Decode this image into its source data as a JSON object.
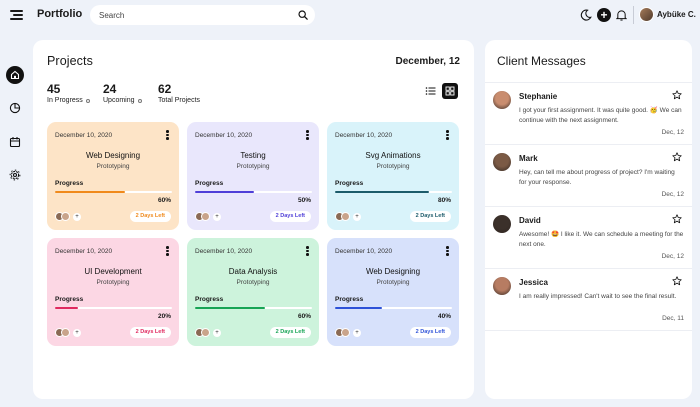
{
  "header": {
    "brand": "Portfolio",
    "search_placeholder": "Search",
    "user_name": "Aybüke C."
  },
  "sidebar": {
    "items": [
      {
        "icon": "home-icon",
        "active": true
      },
      {
        "icon": "pie-chart-icon",
        "active": false
      },
      {
        "icon": "calendar-icon",
        "active": false
      },
      {
        "icon": "gear-icon",
        "active": false
      }
    ]
  },
  "projects": {
    "title": "Projects",
    "date": "December, 12",
    "stats": [
      {
        "value": "45",
        "label": "In Progress"
      },
      {
        "value": "24",
        "label": "Upcoming"
      },
      {
        "value": "62",
        "label": "Total Projects"
      }
    ],
    "cards": [
      {
        "date": "December 10, 2020",
        "title": "Web Designing",
        "subtitle": "Prototyping",
        "progress_label": "Progress",
        "progress": 0.6,
        "percent": "60%",
        "days_left": "2 Days Left",
        "bg": "#fde4c7",
        "accent": "#f08a1c"
      },
      {
        "date": "December 10, 2020",
        "title": "Testing",
        "subtitle": "Prototyping",
        "progress_label": "Progress",
        "progress": 0.5,
        "percent": "50%",
        "days_left": "2 Days Left",
        "bg": "#e9e7fc",
        "accent": "#4f3fd8"
      },
      {
        "date": "December 10, 2020",
        "title": "Svg Animations",
        "subtitle": "Prototyping",
        "progress_label": "Progress",
        "progress": 0.8,
        "percent": "80%",
        "days_left": "2 Days Left",
        "bg": "#d9f3fa",
        "accent": "#1c5b6a"
      },
      {
        "date": "December 10, 2020",
        "title": "UI Development",
        "subtitle": "Prototyping",
        "progress_label": "Progress",
        "progress": 0.2,
        "percent": "20%",
        "days_left": "2 Days Left",
        "bg": "#fcd7e4",
        "accent": "#e0295f"
      },
      {
        "date": "December 10, 2020",
        "title": "Data Analysis",
        "subtitle": "Prototyping",
        "progress_label": "Progress",
        "progress": 0.6,
        "percent": "60%",
        "days_left": "2 Days Left",
        "bg": "#cdf3dc",
        "accent": "#17a455"
      },
      {
        "date": "December 10, 2020",
        "title": "Web Designing",
        "subtitle": "Prototyping",
        "progress_label": "Progress",
        "progress": 0.4,
        "percent": "40%",
        "days_left": "2 Days Left",
        "bg": "#d7e1fb",
        "accent": "#2e52d8"
      }
    ]
  },
  "messages": {
    "title": "Client Messages",
    "items": [
      {
        "name": "Stephanie",
        "text": "I got your first assignment. It was quite good. 🥳 We can continue with the next assignment.",
        "date": "Dec, 12",
        "avatar": "#c98d6f"
      },
      {
        "name": "Mark",
        "text": "Hey, can tell me about progress of project? I'm waiting for your response.",
        "date": "Dec, 12",
        "avatar": "#7b5a45"
      },
      {
        "name": "David",
        "text": "Awesome! 🤩 I like it. We can schedule a meeting for the next one.",
        "date": "Dec, 12",
        "avatar": "#3b302a"
      },
      {
        "name": "Jessica",
        "text": "I am really impressed! Can't wait to see the final result.",
        "date": "Dec, 11",
        "avatar": "#b77c62"
      }
    ]
  }
}
